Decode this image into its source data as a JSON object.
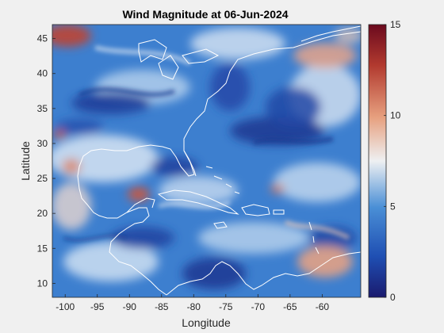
{
  "figure": {
    "title": "Wind Magnitude at 06-Jun-2024",
    "xlabel": "Longitude",
    "ylabel": "Latitude"
  },
  "axes": {
    "xlim": [
      -102,
      -54
    ],
    "ylim": [
      8,
      47
    ],
    "xticks": [
      -100,
      -95,
      -90,
      -85,
      -80,
      -75,
      -70,
      -65,
      -60
    ],
    "xticklabels": [
      "-100",
      "-95",
      "-90",
      "-85",
      "-80",
      "-75",
      "-70",
      "-65",
      "-60"
    ],
    "yticks": [
      10,
      15,
      20,
      25,
      30,
      35,
      40,
      45
    ],
    "yticklabels": [
      "10",
      "15",
      "20",
      "25",
      "30",
      "35",
      "40",
      "45"
    ]
  },
  "colorbar": {
    "limits": [
      0,
      15
    ],
    "ticks": [
      0,
      5,
      10,
      15
    ],
    "ticklabels": [
      "0",
      "5",
      "10",
      "15"
    ],
    "colormap_stops": [
      "#1a1a6e",
      "#1f4fb3",
      "#4a8fd6",
      "#eef0f2",
      "#e7a07f",
      "#b23a2f",
      "#6b0a1e"
    ]
  },
  "map_colors": {
    "ocean_base": "#3d7fcf",
    "coastline": "#ffffff"
  }
}
